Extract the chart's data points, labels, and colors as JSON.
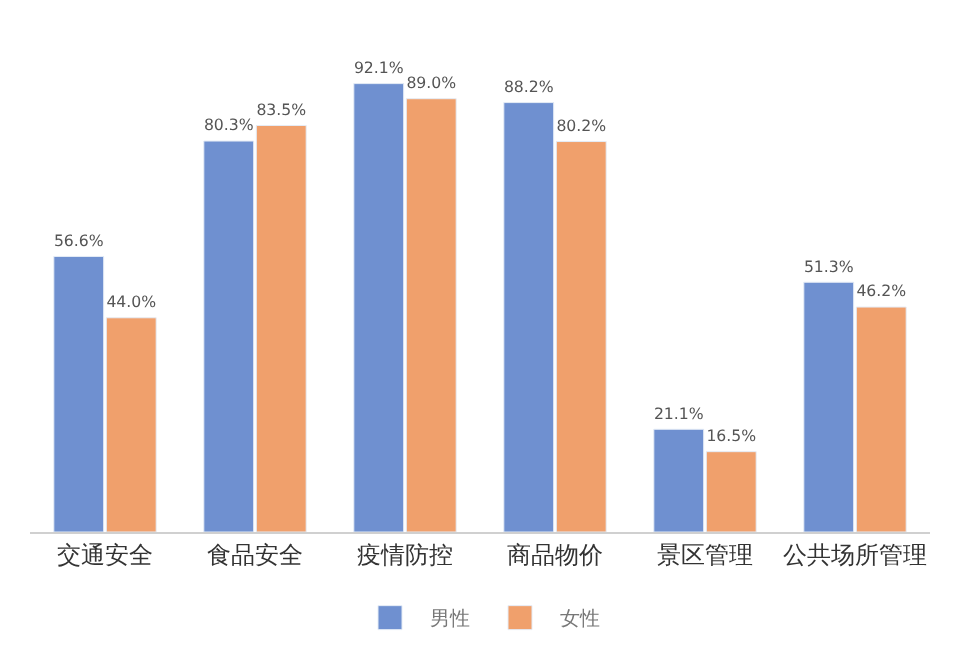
{
  "chart_data": {
    "type": "bar",
    "categories": [
      "交通安全",
      "食品安全",
      "疫情防控",
      "商品物价",
      "景区管理",
      "公共场所管理"
    ],
    "series": [
      {
        "name": "男性",
        "color": "#6f90d0",
        "values": [
          56.6,
          80.3,
          92.1,
          88.2,
          21.1,
          51.3
        ],
        "value_labels": [
          "56.6%",
          "80.3%",
          "92.1%",
          "88.2%",
          "21.1%",
          "51.3%"
        ]
      },
      {
        "name": "女性",
        "color": "#f0a06c",
        "values": [
          44.0,
          83.5,
          89.0,
          80.2,
          16.5,
          46.2
        ],
        "value_labels": [
          "44.0%",
          "83.5%",
          "89.0%",
          "80.2%",
          "16.5%",
          "46.2%"
        ]
      }
    ],
    "legend": "bottom",
    "tick_labels": "x"
  }
}
